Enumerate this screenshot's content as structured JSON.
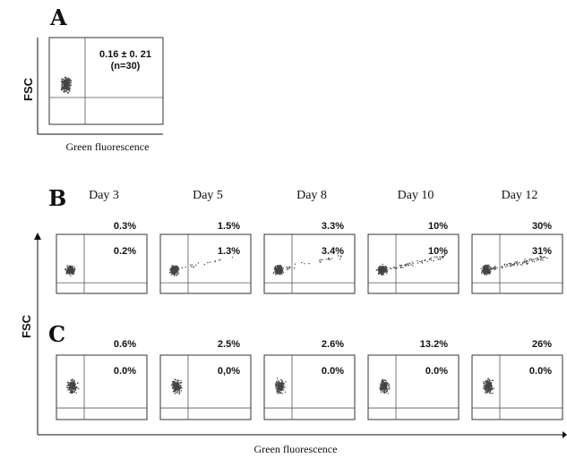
{
  "panel_a": {
    "letter": "A",
    "ylabel": "FSC",
    "xlabel": "Green fluorescence",
    "value": "0.16 ± 0. 21",
    "n": "(n=30)"
  },
  "panels_bc": {
    "ylabel": "FSC",
    "xlabel": "Green fluorescence",
    "days": [
      "Day 3",
      "Day 5",
      "Day 8",
      "Day 10",
      "Day 12"
    ],
    "row_b": {
      "letter": "B",
      "top_values": [
        "0.3%",
        "1.5%",
        "3.3%",
        "10%",
        "30%"
      ],
      "quadrant_values": [
        "0.2%",
        "1.3%",
        "3.4%",
        "10%",
        "31%"
      ],
      "positive_spread": [
        0.0,
        0.15,
        0.25,
        0.55,
        0.8
      ]
    },
    "row_c": {
      "letter": "C",
      "top_values": [
        "0.6%",
        "2.5%",
        "2.6%",
        "13.2%",
        "26%"
      ],
      "quadrant_values": [
        "0.0%",
        "0,0%",
        "0.0%",
        "0.0%",
        "0.0%"
      ],
      "positive_spread": [
        0.0,
        0.0,
        0.0,
        0.0,
        0.0
      ]
    }
  },
  "colors": {
    "ink": "#111111",
    "dots": "#444444"
  }
}
